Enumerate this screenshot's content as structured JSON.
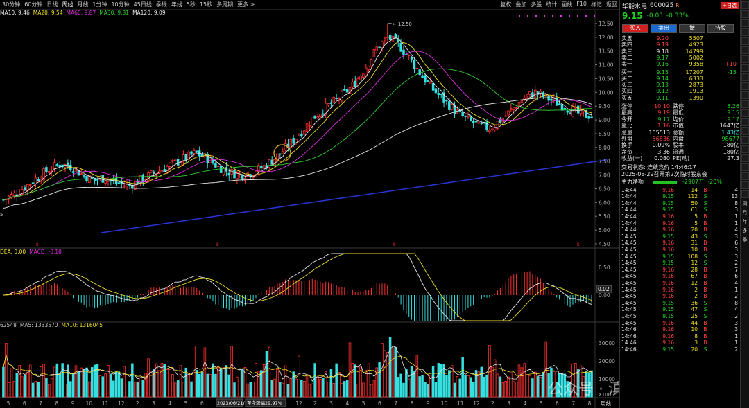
{
  "toolbar": {
    "left_items": [
      "30分钟",
      "60分钟",
      "日线",
      "周线",
      "月线",
      "1分钟",
      "10分钟",
      "45日线",
      "季线",
      "年线",
      "5秒",
      "15秒",
      "多周期",
      "更多 >"
    ],
    "active_index": 3,
    "right_items": [
      "复权",
      "叠加",
      "多股",
      "统计",
      "画线",
      "F10",
      "标记",
      "返回"
    ]
  },
  "ma_legend": [
    {
      "label": "MA10: 9.46",
      "color": "#e8e8e8"
    },
    {
      "label": "MA20: 9.54",
      "color": "#f0e020"
    },
    {
      "label": "MA60: 9.87",
      "color": "#e030e0"
    },
    {
      "label": "MA30: 9.31",
      "color": "#30d030"
    },
    {
      "label": "MA120: 9.09",
      "color": "#e8e8e8"
    }
  ],
  "macd_legend": [
    {
      "label": "DEA: 0.00",
      "color": "#f0e020"
    },
    {
      "label": "MACD: -0.10",
      "color": "#e030e0"
    }
  ],
  "vol_legend": [
    {
      "label": "62548",
      "color": "#c8c8c8"
    },
    {
      "label": "MA5: 1333570",
      "color": "#c8c8c8"
    },
    {
      "label": "MA10: 1316045",
      "color": "#f0e020"
    }
  ],
  "chart_data": {
    "type": "candlestick",
    "price_axis_ticks": [
      "12.50",
      "12.00",
      "11.50",
      "11.00",
      "10.50",
      "10.00",
      "9.50",
      "9.00",
      "8.50",
      "8.00",
      "7.50",
      "7.00",
      "6.50",
      "6.00",
      "5.50",
      "5.00",
      "4.50"
    ],
    "ylim": [
      4.5,
      12.75
    ],
    "peak_annotation": "12.50",
    "left_annotation": "5",
    "macd_axis_ticks": [
      "0.50",
      "0.00"
    ],
    "macd_current": "0.02",
    "vol_axis_ticks": [
      "30000",
      "20000",
      "10000"
    ],
    "vol_axis_unit": "X100",
    "x_labels": [
      "5",
      "6",
      "7",
      "8",
      "9",
      "10",
      "11",
      "12",
      "2",
      "3",
      "4",
      "5",
      "6",
      "7",
      "8",
      "9",
      "10",
      "11",
      "12",
      "2",
      "3",
      "4",
      "5",
      "6",
      "7",
      "8",
      "9",
      "10",
      "11",
      "12",
      "2",
      "3",
      "4",
      "5",
      "6",
      "7",
      "8"
    ],
    "date_box": "2023/06/21/三",
    "range_box": "至今涨幅29.97%",
    "period_label": "周线",
    "close_points": [
      6.1,
      6.3,
      6.6,
      6.9,
      7.2,
      7.4,
      7.3,
      7.0,
      6.8,
      6.9,
      6.7,
      6.6,
      6.8,
      7.0,
      7.2,
      7.4,
      7.6,
      7.8,
      7.6,
      7.3,
      7.1,
      7.0,
      7.1,
      7.3,
      7.6,
      8.0,
      8.4,
      8.9,
      9.3,
      9.6,
      9.9,
      10.3,
      10.9,
      11.6,
      12.0,
      11.7,
      11.2,
      10.6,
      10.1,
      9.7,
      9.3,
      9.0,
      8.8,
      8.7,
      9.0,
      9.4,
      9.8,
      10.0,
      9.8,
      9.6,
      9.4,
      9.2,
      9.15
    ]
  },
  "stock": {
    "name": "华能水电",
    "code": "600025",
    "badge": "R",
    "self_select": "+自选",
    "price": "9.15",
    "change": "-0.03",
    "pct": "-0.33%"
  },
  "buttons": {
    "buy": "买入",
    "sell": "卖出",
    "hold": "撤",
    "other": "持股"
  },
  "orderbook_sell": [
    {
      "label": "卖五",
      "price": "9.20",
      "vol": "5507",
      "extra": ""
    },
    {
      "label": "卖四",
      "price": "9.19",
      "vol": "4923",
      "extra": ""
    },
    {
      "label": "卖三",
      "price": "9.18",
      "vol": "14799",
      "extra": ""
    },
    {
      "label": "卖二",
      "price": "9.17",
      "vol": "5002",
      "extra": ""
    },
    {
      "label": "卖一",
      "price": "9.16",
      "vol": "9358",
      "extra": "+10"
    }
  ],
  "orderbook_buy": [
    {
      "label": "买一",
      "price": "9.15",
      "vol": "17207",
      "extra": "-15"
    },
    {
      "label": "买二",
      "price": "9.14",
      "vol": "6333",
      "extra": ""
    },
    {
      "label": "买三",
      "price": "9.13",
      "vol": "2873",
      "extra": ""
    },
    {
      "label": "买四",
      "price": "9.12",
      "vol": "1913",
      "extra": ""
    },
    {
      "label": "买五",
      "price": "9.11",
      "vol": "1390",
      "extra": ""
    }
  ],
  "quote_stats": [
    {
      "l1": "涨停",
      "v1": "10.10",
      "c1": "red",
      "l2": "跌停",
      "v2": "8.26",
      "c2": "green"
    },
    {
      "l1": "最高",
      "v1": "9.19",
      "c1": "red",
      "l2": "最低",
      "v2": "9.15",
      "c2": "green"
    },
    {
      "l1": "今开",
      "v1": "9.17",
      "c1": "green",
      "l2": "均价",
      "v2": "9.17",
      "c2": "green"
    },
    {
      "l1": "量比",
      "v1": "1.16",
      "c1": "red",
      "l2": "市值",
      "v2": "1647亿",
      "c2": "white"
    },
    {
      "l1": "总量",
      "v1": "155513",
      "c1": "white",
      "l2": "总额",
      "v2": "1.43亿",
      "c2": "cyan"
    },
    {
      "l1": "外盘",
      "v1": "56836",
      "c1": "red",
      "l2": "内盘",
      "v2": "98677",
      "c2": "green"
    },
    {
      "l1": "换手",
      "v1": "0.09%",
      "c1": "white",
      "l2": "股本",
      "v2": "180亿",
      "c2": "white"
    },
    {
      "l1": "净资",
      "v1": "3.36",
      "c1": "white",
      "l2": "流通",
      "v2": "180亿",
      "c2": "white"
    },
    {
      "l1": "收益(一)",
      "v1": "0.080",
      "c1": "white",
      "l2": "PE(动)",
      "v2": "27.3",
      "c2": "white"
    }
  ],
  "trade_status": "交易状态: 连续竞价 14:46:17",
  "notice": "2025-08-29召开第2次临时股东会",
  "main_flow": {
    "label": "主力净额",
    "value": "-2907万",
    "pct": "-20%"
  },
  "ticks": [
    {
      "t": "14:44",
      "p": "9.16",
      "v": "14",
      "d": "B",
      "n": "4"
    },
    {
      "t": "14:44",
      "p": "9.15",
      "v": "112",
      "d": "S",
      "n": "13"
    },
    {
      "t": "14:44",
      "p": "9.15",
      "v": "50",
      "d": "S",
      "n": "8"
    },
    {
      "t": "14:44",
      "p": "9.15",
      "v": "61",
      "d": "S",
      "n": "3"
    },
    {
      "t": "14:44",
      "p": "9.16",
      "v": "5",
      "d": "B",
      "n": "1"
    },
    {
      "t": "14:44",
      "p": "9.16",
      "v": "5",
      "d": "B",
      "n": "1"
    },
    {
      "t": "14:44",
      "p": "9.16",
      "v": "20",
      "d": "B",
      "n": "4"
    },
    {
      "t": "14:45",
      "p": "9.15",
      "v": "43",
      "d": "S",
      "n": "3"
    },
    {
      "t": "14:45",
      "p": "9.16",
      "v": "31",
      "d": "B",
      "n": "6"
    },
    {
      "t": "14:45",
      "p": "9.16",
      "v": "10",
      "d": "B",
      "n": "3"
    },
    {
      "t": "14:45",
      "p": "9.15",
      "v": "108",
      "d": "S",
      "n": "3"
    },
    {
      "t": "14:45",
      "p": "9.15",
      "v": "12",
      "d": "S",
      "n": "2"
    },
    {
      "t": "14:45",
      "p": "9.16",
      "v": "28",
      "d": "B",
      "n": "7"
    },
    {
      "t": "14:45",
      "p": "9.16",
      "v": "67",
      "d": "B",
      "n": "6"
    },
    {
      "t": "14:45",
      "p": "9.16",
      "v": "12",
      "d": "B",
      "n": "4"
    },
    {
      "t": "14:45",
      "p": "9.16",
      "v": "2",
      "d": "B",
      "n": "1"
    },
    {
      "t": "14:45",
      "p": "9.16",
      "v": "2",
      "d": "B",
      "n": "2"
    },
    {
      "t": "14:45",
      "p": "9.15",
      "v": "36",
      "d": "S",
      "n": "8"
    },
    {
      "t": "14:45",
      "p": "9.15",
      "v": "47",
      "d": "S",
      "n": "4"
    },
    {
      "t": "14:45",
      "p": "9.15",
      "v": "25",
      "d": "S",
      "n": "2"
    },
    {
      "t": "14:45",
      "p": "9.16",
      "v": "44",
      "d": "B",
      "n": "3"
    },
    {
      "t": "14:46",
      "p": "9.16",
      "v": "10",
      "d": "B",
      "n": "3"
    },
    {
      "t": "14:46",
      "p": "9.16",
      "v": "8",
      "d": "B",
      "n": "1"
    },
    {
      "t": "14:46",
      "p": "9.16",
      "v": "3",
      "d": "B",
      "n": "1"
    },
    {
      "t": "14:46",
      "p": "9.15",
      "v": "20",
      "d": "S",
      "n": "2"
    }
  ],
  "watermark": "公众号 · 滇南王",
  "sidebar_chars": [
    "周",
    "月",
    "年",
    "多",
    "季"
  ]
}
